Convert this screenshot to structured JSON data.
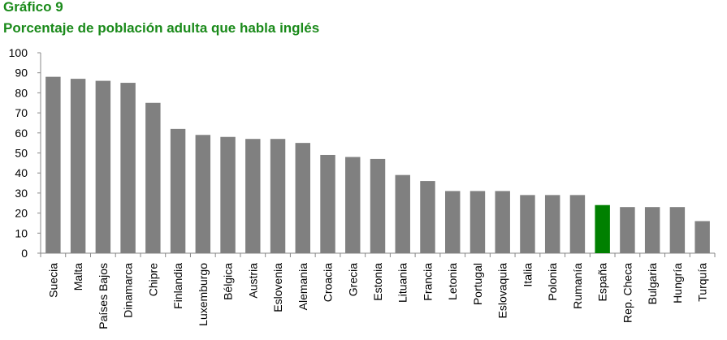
{
  "chart_data": {
    "type": "bar",
    "title": "Gráfico 9",
    "subtitle": "Porcentaje de población adulta que habla inglés",
    "categories": [
      "Suecia",
      "Malta",
      "Países Bajos",
      "Dinamarca",
      "Chipre",
      "Finlandia",
      "Luxemburgo",
      "Bélgica",
      "Austria",
      "Eslovenia",
      "Alemania",
      "Croacia",
      "Grecia",
      "Estonia",
      "Lituania",
      "Francia",
      "Letonia",
      "Portugal",
      "Eslovaquia",
      "Italia",
      "Polonia",
      "Rumanía",
      "España",
      "Rep. Checa",
      "Bulgaria",
      "Hungría",
      "Turquía"
    ],
    "values": [
      88,
      87,
      86,
      85,
      75,
      62,
      59,
      58,
      57,
      57,
      55,
      49,
      48,
      47,
      39,
      36,
      31,
      31,
      31,
      29,
      29,
      29,
      24,
      23,
      23,
      23,
      16
    ],
    "colors": [
      "#808080",
      "#808080",
      "#808080",
      "#808080",
      "#808080",
      "#808080",
      "#808080",
      "#808080",
      "#808080",
      "#808080",
      "#808080",
      "#808080",
      "#808080",
      "#808080",
      "#808080",
      "#808080",
      "#808080",
      "#808080",
      "#808080",
      "#808080",
      "#808080",
      "#808080",
      "#008000",
      "#808080",
      "#808080",
      "#808080",
      "#808080"
    ],
    "ylim": [
      0,
      100
    ],
    "yticks": [
      0,
      10,
      20,
      30,
      40,
      50,
      60,
      70,
      80,
      90,
      100
    ],
    "grid": false
  }
}
